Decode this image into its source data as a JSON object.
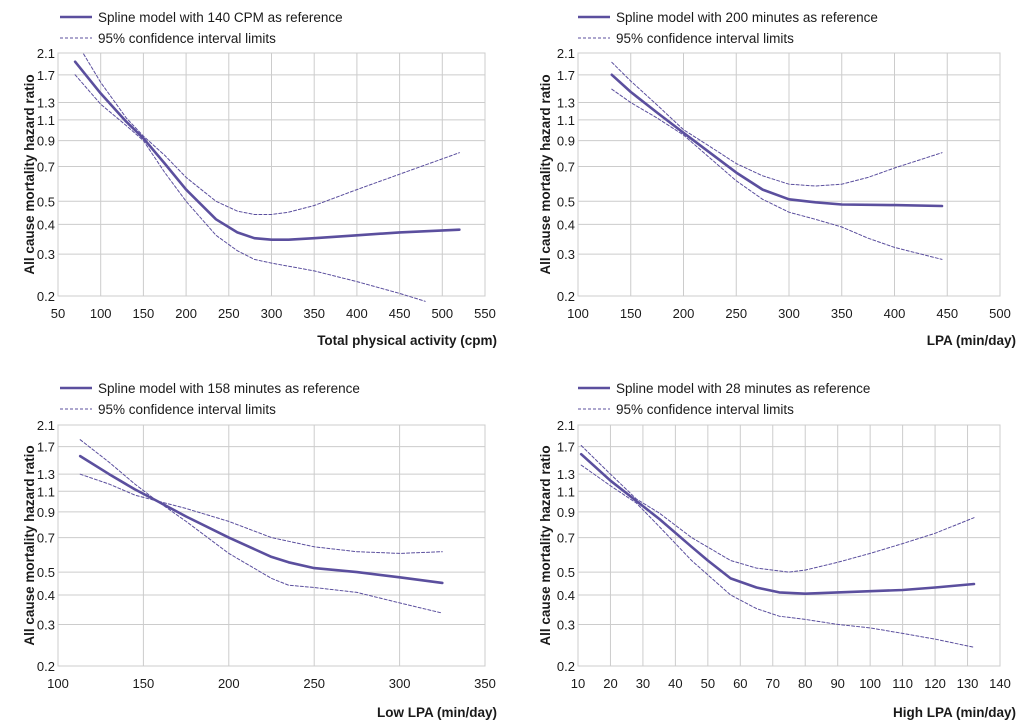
{
  "colors": {
    "line": "#5b4f9e",
    "grid": "#cccccc",
    "axis": "#555555",
    "text": "#1a1a1a"
  },
  "ylabel": "All cause mortality hazard ratio",
  "ylog": true,
  "yticks": [
    0.2,
    0.3,
    0.4,
    0.5,
    0.7,
    0.9,
    1.1,
    1.3,
    1.7,
    2.1
  ],
  "ylim": [
    0.2,
    2.1
  ],
  "chart_data": [
    {
      "type": "line",
      "xlabel": "Total physical activity (cpm)",
      "xlim": [
        50,
        550
      ],
      "xticks": [
        50,
        100,
        150,
        200,
        250,
        300,
        350,
        400,
        450,
        500,
        550
      ],
      "legend": [
        "Spline model with 140 CPM as reference",
        "95% confidence interval limits"
      ],
      "series": [
        {
          "name": "Spline model with 140 CPM as reference",
          "style": "solid",
          "x": [
            70,
            100,
            130,
            150,
            175,
            200,
            235,
            260,
            280,
            300,
            320,
            350,
            400,
            450,
            520
          ],
          "y": [
            1.93,
            1.42,
            1.08,
            0.92,
            0.72,
            0.56,
            0.42,
            0.37,
            0.35,
            0.345,
            0.345,
            0.35,
            0.36,
            0.37,
            0.38
          ]
        },
        {
          "name": "95% confidence interval limits",
          "style": "dashed",
          "x": [
            80,
            100,
            130,
            150,
            175,
            200,
            235,
            260,
            280,
            300,
            320,
            350,
            400,
            450,
            520
          ],
          "y": [
            2.08,
            1.58,
            1.12,
            0.94,
            0.78,
            0.63,
            0.5,
            0.455,
            0.44,
            0.44,
            0.45,
            0.48,
            0.56,
            0.65,
            0.8
          ]
        },
        {
          "name": "95% confidence interval limits",
          "style": "dashed",
          "x": [
            70,
            100,
            130,
            150,
            175,
            200,
            235,
            260,
            280,
            300,
            350,
            400,
            450,
            480
          ],
          "y": [
            1.7,
            1.28,
            1.04,
            0.9,
            0.66,
            0.5,
            0.36,
            0.31,
            0.285,
            0.275,
            0.255,
            0.23,
            0.205,
            0.19
          ]
        }
      ]
    },
    {
      "type": "line",
      "xlabel": "LPA (min/day)",
      "xlim": [
        100,
        500
      ],
      "xticks": [
        100,
        150,
        200,
        250,
        300,
        350,
        400,
        450,
        500
      ],
      "legend": [
        "Spline model with 200 minutes as reference",
        "95% confidence interval limits"
      ],
      "series": [
        {
          "name": "Spline model with 200 minutes as reference",
          "style": "solid",
          "x": [
            132,
            150,
            175,
            200,
            225,
            250,
            275,
            300,
            325,
            350,
            400,
            445
          ],
          "y": [
            1.7,
            1.44,
            1.18,
            0.97,
            0.8,
            0.66,
            0.56,
            0.51,
            0.495,
            0.485,
            0.482,
            0.478
          ]
        },
        {
          "name": "95% confidence interval limits",
          "style": "dashed",
          "x": [
            132,
            150,
            175,
            200,
            225,
            250,
            275,
            300,
            325,
            350,
            375,
            400,
            445
          ],
          "y": [
            1.92,
            1.6,
            1.27,
            1.0,
            0.85,
            0.72,
            0.64,
            0.59,
            0.58,
            0.59,
            0.63,
            0.69,
            0.8
          ]
        },
        {
          "name": "95% confidence interval limits",
          "style": "dashed",
          "x": [
            132,
            150,
            175,
            200,
            225,
            250,
            275,
            300,
            325,
            350,
            375,
            400,
            445
          ],
          "y": [
            1.48,
            1.3,
            1.12,
            0.95,
            0.76,
            0.61,
            0.51,
            0.45,
            0.42,
            0.39,
            0.35,
            0.32,
            0.285
          ]
        }
      ]
    },
    {
      "type": "line",
      "xlabel": "Low LPA (min/day)",
      "xlim": [
        100,
        350
      ],
      "xticks": [
        100,
        150,
        200,
        250,
        300,
        350
      ],
      "legend": [
        "Spline model with 158 minutes as reference",
        "95% confidence interval limits"
      ],
      "series": [
        {
          "name": "Spline model with 158 minutes as reference",
          "style": "solid",
          "x": [
            113,
            130,
            145,
            158,
            175,
            200,
            225,
            235,
            250,
            275,
            300,
            325
          ],
          "y": [
            1.55,
            1.3,
            1.12,
            1.0,
            0.86,
            0.7,
            0.58,
            0.55,
            0.52,
            0.5,
            0.475,
            0.45
          ]
        },
        {
          "name": "95% confidence interval limits",
          "style": "dashed",
          "x": [
            113,
            130,
            145,
            158,
            175,
            200,
            225,
            250,
            275,
            300,
            325
          ],
          "y": [
            1.82,
            1.46,
            1.18,
            1.0,
            0.93,
            0.82,
            0.7,
            0.64,
            0.61,
            0.6,
            0.61
          ]
        },
        {
          "name": "95% confidence interval limits",
          "style": "dashed",
          "x": [
            113,
            130,
            145,
            158,
            175,
            200,
            225,
            235,
            250,
            275,
            300,
            325
          ],
          "y": [
            1.3,
            1.18,
            1.06,
            1.0,
            0.82,
            0.6,
            0.47,
            0.44,
            0.43,
            0.41,
            0.37,
            0.335
          ]
        }
      ]
    },
    {
      "type": "line",
      "xlabel": "High LPA (min/day)",
      "xlim": [
        10,
        140
      ],
      "xticks": [
        10,
        20,
        30,
        40,
        50,
        60,
        70,
        80,
        90,
        100,
        110,
        120,
        130,
        140
      ],
      "legend": [
        "Spline model with 28 minutes as reference",
        "95% confidence interval limits"
      ],
      "series": [
        {
          "name": "Spline model with 28 minutes as reference",
          "style": "solid",
          "x": [
            11,
            20,
            28,
            35,
            45,
            50,
            57,
            65,
            72,
            80,
            90,
            100,
            110,
            120,
            132
          ],
          "y": [
            1.58,
            1.22,
            1.0,
            0.84,
            0.64,
            0.56,
            0.47,
            0.43,
            0.41,
            0.405,
            0.41,
            0.415,
            0.42,
            0.43,
            0.445
          ]
        },
        {
          "name": "95% confidence interval limits",
          "style": "dashed",
          "x": [
            11,
            20,
            28,
            35,
            45,
            57,
            65,
            75,
            80,
            90,
            100,
            110,
            120,
            132
          ],
          "y": [
            1.72,
            1.3,
            1.02,
            0.89,
            0.7,
            0.56,
            0.52,
            0.5,
            0.51,
            0.55,
            0.6,
            0.66,
            0.73,
            0.85
          ]
        },
        {
          "name": "95% confidence interval limits",
          "style": "dashed",
          "x": [
            11,
            20,
            28,
            35,
            45,
            57,
            65,
            72,
            80,
            90,
            100,
            110,
            120,
            132
          ],
          "y": [
            1.42,
            1.16,
            0.98,
            0.78,
            0.56,
            0.4,
            0.35,
            0.325,
            0.315,
            0.3,
            0.29,
            0.275,
            0.26,
            0.24
          ]
        }
      ]
    }
  ]
}
